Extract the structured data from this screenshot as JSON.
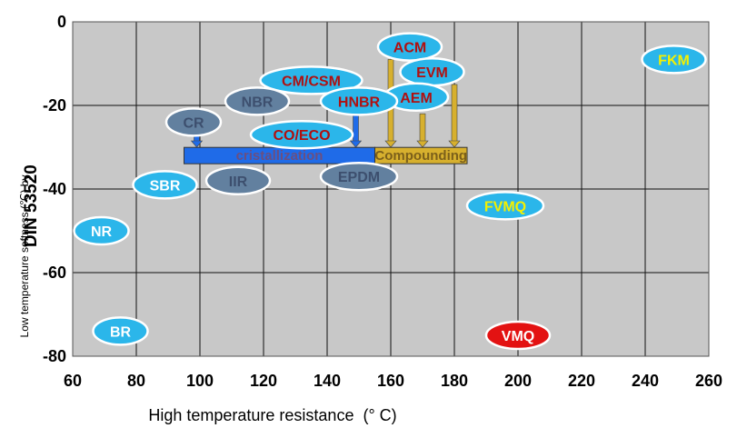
{
  "chart_data": {
    "type": "scatter",
    "title": "",
    "xlabel": "High temperature resistance  (° C)",
    "ylabel_main": "DIN 53520",
    "ylabel_sub": "Low temperature softness (℃) by",
    "xlim": [
      60,
      260
    ],
    "ylim": [
      -80,
      0
    ],
    "x_ticks": [
      "60",
      "80",
      "100",
      "120",
      "140",
      "160",
      "180",
      "200",
      "220",
      "240",
      "260"
    ],
    "y_ticks": [
      "0",
      "-20",
      "-40",
      "-60",
      "-80"
    ],
    "x_tick_values": [
      60,
      80,
      100,
      120,
      140,
      160,
      180,
      200,
      220,
      240,
      260
    ],
    "y_tick_values": [
      0,
      -20,
      -40,
      -60,
      -80
    ],
    "grid": true,
    "points": [
      {
        "label": "FKM",
        "x": 249,
        "y": -9,
        "fill": "#2bb6ea",
        "text_color": "#f4f000"
      },
      {
        "label": "ACM",
        "x": 166,
        "y": -6,
        "fill": "#2bb6ea",
        "text_color": "#b01010"
      },
      {
        "label": "EVM",
        "x": 173,
        "y": -12,
        "fill": "#2bb6ea",
        "text_color": "#b01010"
      },
      {
        "label": "AEM",
        "x": 168,
        "y": -18,
        "fill": "#2bb6ea",
        "text_color": "#b01010"
      },
      {
        "label": "CM/CSM",
        "x": 135,
        "y": -14,
        "fill": "#2bb6ea",
        "text_color": "#b01010"
      },
      {
        "label": "HNBR",
        "x": 150,
        "y": -19,
        "fill": "#2bb6ea",
        "text_color": "#b01010"
      },
      {
        "label": "NBR",
        "x": 118,
        "y": -19,
        "fill": "#62809f",
        "text_color": "#3d4f6e"
      },
      {
        "label": "CR",
        "x": 98,
        "y": -24,
        "fill": "#62809f",
        "text_color": "#3d4f6e"
      },
      {
        "label": "CO/ECO",
        "x": 132,
        "y": -27,
        "fill": "#2bb6ea",
        "text_color": "#b01010"
      },
      {
        "label": "IIR",
        "x": 112,
        "y": -38,
        "fill": "#62809f",
        "text_color": "#3d4f6e"
      },
      {
        "label": "EPDM",
        "x": 150,
        "y": -37,
        "fill": "#62809f",
        "text_color": "#3d4f6e"
      },
      {
        "label": "SBR",
        "x": 89,
        "y": -39,
        "fill": "#2bb6ea",
        "text_color": "#ffffff"
      },
      {
        "label": "NR",
        "x": 69,
        "y": -50,
        "fill": "#2bb6ea",
        "text_color": "#ffffff"
      },
      {
        "label": "FVMQ",
        "x": 196,
        "y": -44,
        "fill": "#2bb6ea",
        "text_color": "#f4f000"
      },
      {
        "label": "BR",
        "x": 75,
        "y": -74,
        "fill": "#2bb6ea",
        "text_color": "#ffffff"
      },
      {
        "label": "VMQ",
        "x": 200,
        "y": -75,
        "fill": "#e31212",
        "text_color": "#ffffff"
      }
    ],
    "bars": [
      {
        "label": "cristallization",
        "x_start": 95,
        "x_end": 155,
        "y_center": -32,
        "fill": "#1f6be8",
        "text_color": "#6b4f80"
      },
      {
        "label": "Compounding",
        "x_start": 155,
        "x_end": 184,
        "y_center": -32,
        "fill": "#d7b02e",
        "text_color": "#7b5f1a"
      }
    ],
    "arrows": [
      {
        "x": 99,
        "y_from": -26,
        "y_to": -30,
        "color": "#1f6be8"
      },
      {
        "x": 149,
        "y_from": -22,
        "y_to": -30,
        "color": "#1f6be8"
      },
      {
        "x": 160,
        "y_from": -9,
        "y_to": -30,
        "color": "#d7b02e"
      },
      {
        "x": 170,
        "y_from": -22,
        "y_to": -30,
        "color": "#d7b02e"
      },
      {
        "x": 180,
        "y_from": -15,
        "y_to": -30,
        "color": "#d7b02e"
      }
    ]
  }
}
